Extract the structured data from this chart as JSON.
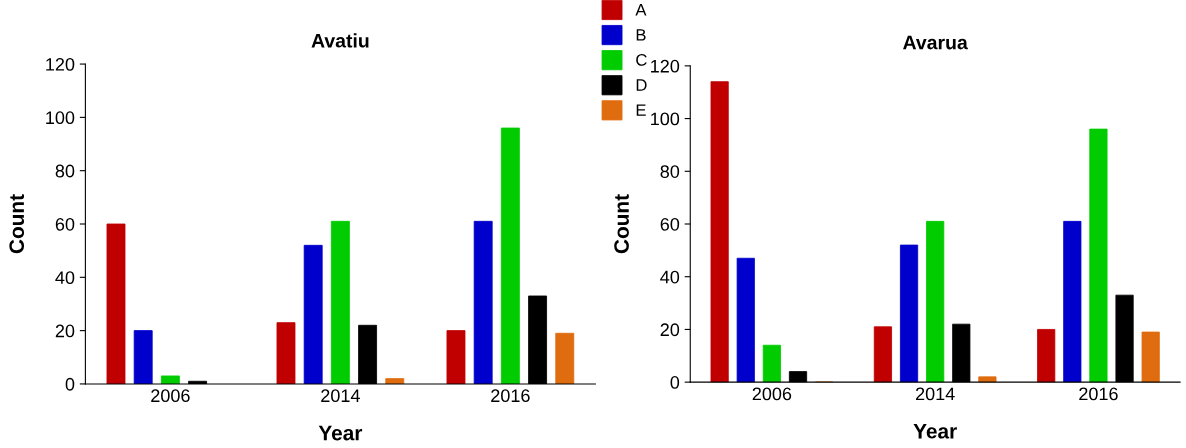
{
  "chart_data": [
    {
      "type": "bar",
      "title": "Avatiu",
      "xlabel": "Year",
      "ylabel": "Count",
      "categories": [
        "2006",
        "2014",
        "2016"
      ],
      "ylim": [
        0,
        120
      ],
      "yticks": [
        0,
        20,
        40,
        60,
        80,
        100,
        120
      ],
      "grid": false,
      "legend": "top right",
      "series": [
        {
          "name": "A",
          "color": "#c00000",
          "values": [
            60,
            23,
            20
          ]
        },
        {
          "name": "B",
          "color": "#0000cc",
          "values": [
            20,
            52,
            61
          ]
        },
        {
          "name": "C",
          "color": "#00cc00",
          "values": [
            3,
            61,
            96
          ]
        },
        {
          "name": "D",
          "color": "#000000",
          "values": [
            1,
            22,
            33
          ]
        },
        {
          "name": "E",
          "color": "#e06c10",
          "values": [
            null,
            2,
            19
          ]
        }
      ]
    },
    {
      "type": "bar",
      "title": "Avarua",
      "xlabel": "Year",
      "ylabel": "Count",
      "categories": [
        "2006",
        "2014",
        "2016"
      ],
      "ylim": [
        0,
        120
      ],
      "yticks": [
        0,
        20,
        40,
        60,
        80,
        100,
        120
      ],
      "grid": false,
      "legend": false,
      "series": [
        {
          "color": "#c00000",
          "values": [
            114,
            21,
            20
          ]
        },
        {
          "color": "#0000cc",
          "values": [
            47,
            52,
            61
          ]
        },
        {
          "color": "#00cc00",
          "values": [
            14,
            61,
            96
          ]
        },
        {
          "color": "#000000",
          "values": [
            4,
            22,
            33
          ]
        },
        {
          "color": "#e06c10",
          "values": [
            0,
            2,
            19
          ]
        }
      ]
    }
  ]
}
